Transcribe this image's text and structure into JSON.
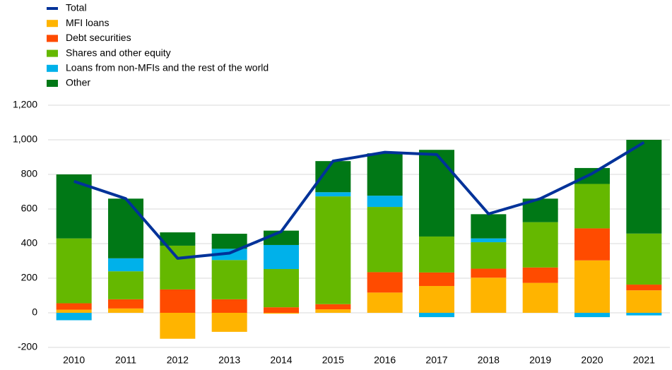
{
  "chart_data": {
    "type": "bar",
    "stacked": true,
    "categories": [
      "2010",
      "2011",
      "2012",
      "2013",
      "2014",
      "2015",
      "2016",
      "2017",
      "2018",
      "2019",
      "2020",
      "2021"
    ],
    "series": [
      {
        "name": "Total",
        "color": "#003299",
        "type": "line",
        "values": [
          760,
          660,
          315,
          345,
          470,
          877,
          928,
          915,
          572,
          660,
          805,
          985
        ]
      },
      {
        "name": "MFI loans",
        "color": "#ffb400",
        "values": [
          18,
          25,
          -150,
          -110,
          -5,
          20,
          117,
          155,
          203,
          173,
          303,
          130
        ]
      },
      {
        "name": "Debt securities",
        "color": "#ff4b00",
        "values": [
          37,
          53,
          135,
          78,
          32,
          30,
          118,
          78,
          52,
          89,
          185,
          33
        ]
      },
      {
        "name": "Shares and other equity",
        "color": "#65b800",
        "values": [
          375,
          162,
          253,
          227,
          221,
          623,
          377,
          208,
          153,
          262,
          257,
          295
        ]
      },
      {
        "name": "Loans from non-MFIs and the rest of the world",
        "color": "#00b1ea",
        "values": [
          -43,
          75,
          0,
          65,
          139,
          24,
          65,
          -25,
          22,
          0,
          -25,
          -15
        ]
      },
      {
        "name": "Other",
        "color": "#007816",
        "values": [
          370,
          345,
          77,
          87,
          83,
          180,
          245,
          501,
          140,
          136,
          92,
          542
        ]
      }
    ],
    "ylim": [
      -200,
      1200
    ],
    "yticks": [
      -200,
      0,
      200,
      400,
      600,
      800,
      {
        "value": 1000,
        "label": "1,000"
      },
      {
        "value": 1200,
        "label": "1,200"
      }
    ],
    "grid": true,
    "legend": "top-left"
  }
}
